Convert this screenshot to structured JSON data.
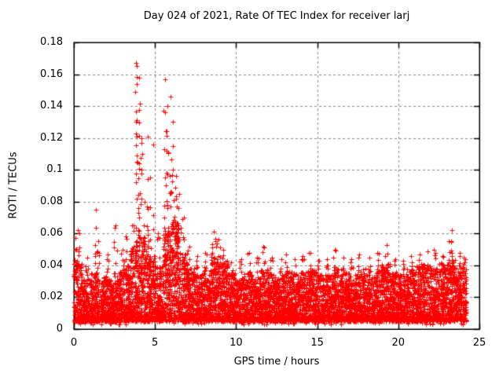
{
  "chart_data": {
    "type": "scatter",
    "title": "Day 024 of 2021, Rate Of TEC Index for receiver larj",
    "xlabel": "GPS time / hours",
    "ylabel": "ROTI / TECUs",
    "xlim": [
      0,
      25
    ],
    "ylim": [
      0,
      0.18
    ],
    "x_ticks": [
      0,
      5,
      10,
      15,
      20,
      25
    ],
    "y_ticks": [
      0,
      0.02,
      0.04,
      0.06,
      0.08,
      0.1,
      0.12,
      0.14,
      0.16,
      0.18
    ],
    "grid": {
      "visible": true,
      "style": "dashed",
      "color": "#888888"
    },
    "axis_color": "#000000",
    "background": "#ffffff",
    "legend": "none",
    "series": [
      {
        "name": "ROTI",
        "marker": "plus",
        "color": "#ff0000",
        "marker_size_px": 7,
        "x_data_range_hours": [
          0,
          24.2
        ],
        "point_model": {
          "representation": "dense scatter summarized as 0.5h baseline band tops plus spike columns",
          "y_floor": 0.005,
          "baseline_points_per_half_hour": 150,
          "band_top_bin_hours": 0.5,
          "band_top": [
            0.042,
            0.032,
            0.036,
            0.033,
            0.031,
            0.036,
            0.04,
            0.055,
            0.058,
            0.046,
            0.04,
            0.062,
            0.068,
            0.048,
            0.038,
            0.035,
            0.037,
            0.046,
            0.043,
            0.035,
            0.032,
            0.035,
            0.033,
            0.038,
            0.035,
            0.033,
            0.036,
            0.034,
            0.036,
            0.038,
            0.034,
            0.034,
            0.039,
            0.036,
            0.034,
            0.038,
            0.035,
            0.038,
            0.041,
            0.036,
            0.034,
            0.038,
            0.04,
            0.041,
            0.038,
            0.041,
            0.044,
            0.04,
            0.038
          ],
          "spike_fields": [
            "hour_center",
            "hour_width",
            "y_max",
            "n_points"
          ],
          "spike_base_y": 0.034,
          "spikes": [
            [
              0.1,
              0.15,
              0.057,
              10
            ],
            [
              0.25,
              0.2,
              0.062,
              8
            ],
            [
              0.8,
              0.2,
              0.045,
              6
            ],
            [
              1.35,
              0.15,
              0.075,
              9
            ],
            [
              1.5,
              0.15,
              0.055,
              6
            ],
            [
              2.1,
              0.15,
              0.047,
              5
            ],
            [
              2.55,
              0.2,
              0.065,
              8
            ],
            [
              3.0,
              0.2,
              0.05,
              7
            ],
            [
              3.2,
              0.2,
              0.058,
              8
            ],
            [
              3.6,
              0.15,
              0.065,
              8
            ],
            [
              3.85,
              0.12,
              0.167,
              26
            ],
            [
              4.0,
              0.12,
              0.158,
              22
            ],
            [
              4.15,
              0.12,
              0.12,
              15
            ],
            [
              4.35,
              0.1,
              0.08,
              8
            ],
            [
              4.55,
              0.15,
              0.121,
              16
            ],
            [
              4.7,
              0.1,
              0.095,
              8
            ],
            [
              4.9,
              0.08,
              0.116,
              6
            ],
            [
              5.2,
              0.15,
              0.06,
              6
            ],
            [
              5.6,
              0.12,
              0.157,
              20
            ],
            [
              5.75,
              0.12,
              0.14,
              18
            ],
            [
              5.95,
              0.12,
              0.146,
              16
            ],
            [
              6.1,
              0.15,
              0.13,
              14
            ],
            [
              6.3,
              0.15,
              0.096,
              12
            ],
            [
              6.5,
              0.2,
              0.085,
              10
            ],
            [
              6.8,
              0.2,
              0.07,
              8
            ],
            [
              7.1,
              0.2,
              0.052,
              6
            ],
            [
              7.6,
              0.2,
              0.046,
              5
            ],
            [
              8.1,
              0.2,
              0.048,
              5
            ],
            [
              8.6,
              0.3,
              0.061,
              14
            ],
            [
              8.9,
              0.25,
              0.056,
              10
            ],
            [
              9.2,
              0.2,
              0.05,
              7
            ],
            [
              9.7,
              0.2,
              0.042,
              5
            ],
            [
              10.3,
              0.2,
              0.044,
              5
            ],
            [
              10.8,
              0.2,
              0.048,
              6
            ],
            [
              11.3,
              0.2,
              0.045,
              5
            ],
            [
              11.7,
              0.2,
              0.052,
              7
            ],
            [
              12.2,
              0.2,
              0.045,
              5
            ],
            [
              12.8,
              0.2,
              0.044,
              5
            ],
            [
              13.1,
              0.2,
              0.047,
              6
            ],
            [
              13.6,
              0.2,
              0.044,
              5
            ],
            [
              14.1,
              0.2,
              0.046,
              5
            ],
            [
              14.6,
              0.2,
              0.048,
              6
            ],
            [
              15.1,
              0.2,
              0.043,
              5
            ],
            [
              15.6,
              0.2,
              0.044,
              5
            ],
            [
              16.1,
              0.2,
              0.05,
              7
            ],
            [
              16.6,
              0.2,
              0.045,
              5
            ],
            [
              17.1,
              0.2,
              0.044,
              5
            ],
            [
              17.6,
              0.2,
              0.047,
              6
            ],
            [
              18.2,
              0.2,
              0.045,
              5
            ],
            [
              18.7,
              0.2,
              0.048,
              6
            ],
            [
              19.3,
              0.2,
              0.053,
              7
            ],
            [
              19.8,
              0.2,
              0.044,
              5
            ],
            [
              20.3,
              0.2,
              0.043,
              5
            ],
            [
              20.8,
              0.2,
              0.046,
              5
            ],
            [
              21.3,
              0.2,
              0.047,
              6
            ],
            [
              21.8,
              0.2,
              0.049,
              6
            ],
            [
              22.2,
              0.2,
              0.05,
              6
            ],
            [
              22.7,
              0.2,
              0.046,
              5
            ],
            [
              23.1,
              0.15,
              0.055,
              6
            ],
            [
              23.3,
              0.12,
              0.062,
              9
            ],
            [
              23.8,
              0.15,
              0.048,
              5
            ],
            [
              24.05,
              0.15,
              0.045,
              5
            ]
          ]
        }
      }
    ]
  }
}
